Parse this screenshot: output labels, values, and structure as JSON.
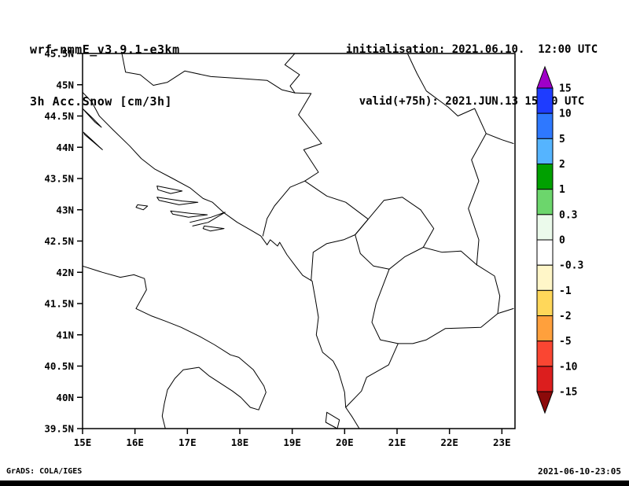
{
  "header": {
    "model": "wrf-nmmE_v3.9.1-e3km",
    "variable": "3h Acc.Snow [cm/3h]",
    "init_label": "initialisation: 2021.06.10.  12:00 UTC",
    "valid_label": "valid(+75h): 2021.JUN.13 15:00 UTC"
  },
  "footer": {
    "credit": "GrADS: COLA/IGES",
    "timestamp": "2021-06-10-23:05"
  },
  "axes": {
    "lat_labels": [
      "45.5N",
      "45N",
      "44.5N",
      "44N",
      "43.5N",
      "43N",
      "42.5N",
      "42N",
      "41.5N",
      "41N",
      "40.5N",
      "40N",
      "39.5N"
    ],
    "lat_values": [
      45.5,
      45,
      44.5,
      44,
      43.5,
      43,
      42.5,
      42,
      41.5,
      41,
      40.5,
      40,
      39.5
    ],
    "lon_labels": [
      "15E",
      "16E",
      "17E",
      "18E",
      "19E",
      "20E",
      "21E",
      "22E",
      "23E"
    ],
    "lon_values": [
      15,
      16,
      17,
      18,
      19,
      20,
      21,
      22,
      23
    ]
  },
  "colorbar": {
    "edge_labels": [
      "15",
      "10",
      "5",
      "2",
      "1",
      "0.3",
      "0",
      "-0.3",
      "-1",
      "-2",
      "-5",
      "-10",
      "-15"
    ],
    "colors_top_to_bottom": [
      "#A000C8",
      "#1E3CFF",
      "#2E78FF",
      "#55B4FF",
      "#00A000",
      "#6CD66C",
      "#EBFAEB",
      "#FFFFFF",
      "#FFF6C8",
      "#FFD75A",
      "#FFA03C",
      "#FA4632",
      "#DC1E1E",
      "#8C0A0A"
    ]
  },
  "map": {
    "lon_range": [
      15,
      23.25
    ],
    "lat_range": [
      39.5,
      45.5
    ],
    "layers": [
      {
        "name": "adriatic-coast",
        "pts": [
          [
            15.0,
            44.88
          ],
          [
            15.18,
            44.72
          ],
          [
            15.32,
            44.5
          ],
          [
            15.58,
            44.28
          ],
          [
            15.9,
            44.02
          ],
          [
            16.12,
            43.82
          ],
          [
            16.38,
            43.65
          ],
          [
            16.72,
            43.5
          ],
          [
            17.05,
            43.35
          ],
          [
            17.3,
            43.18
          ],
          [
            17.48,
            43.12
          ],
          [
            17.7,
            42.95
          ],
          [
            17.95,
            42.8
          ],
          [
            18.2,
            42.68
          ],
          [
            18.4,
            42.58
          ],
          [
            18.52,
            42.44
          ],
          [
            18.58,
            42.52
          ],
          [
            18.72,
            42.42
          ],
          [
            18.76,
            42.48
          ],
          [
            18.9,
            42.28
          ],
          [
            19.08,
            42.08
          ],
          [
            19.2,
            41.95
          ],
          [
            19.38,
            41.86
          ],
          [
            19.44,
            41.58
          ],
          [
            19.5,
            41.28
          ],
          [
            19.46,
            41.0
          ],
          [
            19.58,
            40.72
          ],
          [
            19.78,
            40.58
          ],
          [
            19.88,
            40.42
          ],
          [
            20.0,
            40.08
          ],
          [
            20.02,
            39.84
          ],
          [
            20.15,
            39.68
          ],
          [
            20.28,
            39.5
          ]
        ]
      },
      {
        "name": "italy-coast",
        "pts": [
          [
            15.0,
            42.1
          ],
          [
            15.38,
            42.0
          ],
          [
            15.72,
            41.92
          ],
          [
            15.98,
            41.96
          ],
          [
            16.18,
            41.9
          ],
          [
            16.22,
            41.72
          ],
          [
            16.02,
            41.42
          ],
          [
            16.32,
            41.3
          ],
          [
            16.58,
            41.22
          ],
          [
            16.88,
            41.12
          ],
          [
            17.22,
            40.98
          ],
          [
            17.52,
            40.84
          ],
          [
            17.82,
            40.68
          ],
          [
            17.98,
            40.64
          ],
          [
            18.26,
            40.44
          ],
          [
            18.46,
            40.18
          ],
          [
            18.5,
            40.08
          ],
          [
            18.36,
            39.8
          ],
          [
            18.2,
            39.84
          ],
          [
            18.02,
            40.0
          ],
          [
            17.86,
            40.1
          ],
          [
            17.42,
            40.34
          ],
          [
            17.22,
            40.48
          ],
          [
            16.92,
            40.44
          ],
          [
            16.76,
            40.3
          ],
          [
            16.62,
            40.12
          ],
          [
            16.56,
            39.9
          ],
          [
            16.52,
            39.7
          ],
          [
            16.58,
            39.5
          ]
        ]
      },
      {
        "name": "island-pag",
        "pts": [
          [
            15.0,
            44.62
          ],
          [
            15.2,
            44.46
          ],
          [
            15.36,
            44.32
          ],
          [
            15.24,
            44.4
          ],
          [
            15.04,
            44.58
          ],
          [
            15.0,
            44.62
          ]
        ]
      },
      {
        "name": "island-dugi-otok",
        "pts": [
          [
            15.02,
            44.24
          ],
          [
            15.2,
            44.1
          ],
          [
            15.38,
            43.96
          ],
          [
            15.24,
            44.06
          ],
          [
            15.04,
            44.2
          ],
          [
            15.02,
            44.24
          ]
        ]
      },
      {
        "name": "island-brac",
        "pts": [
          [
            16.42,
            43.38
          ],
          [
            16.72,
            43.33
          ],
          [
            16.9,
            43.3
          ],
          [
            16.68,
            43.26
          ],
          [
            16.44,
            43.32
          ],
          [
            16.42,
            43.38
          ]
        ]
      },
      {
        "name": "island-hvar",
        "pts": [
          [
            16.42,
            43.2
          ],
          [
            16.9,
            43.14
          ],
          [
            17.2,
            43.12
          ],
          [
            16.84,
            43.08
          ],
          [
            16.46,
            43.15
          ],
          [
            16.42,
            43.2
          ]
        ]
      },
      {
        "name": "island-korcula",
        "pts": [
          [
            16.68,
            42.98
          ],
          [
            17.08,
            42.94
          ],
          [
            17.38,
            42.92
          ],
          [
            17.02,
            42.88
          ],
          [
            16.72,
            42.93
          ],
          [
            16.68,
            42.98
          ]
        ]
      },
      {
        "name": "island-vis",
        "pts": [
          [
            16.05,
            43.08
          ],
          [
            16.24,
            43.06
          ],
          [
            16.16,
            43.0
          ],
          [
            16.02,
            43.04
          ],
          [
            16.05,
            43.08
          ]
        ]
      },
      {
        "name": "island-mljet",
        "pts": [
          [
            17.32,
            42.74
          ],
          [
            17.7,
            42.7
          ],
          [
            17.44,
            42.66
          ],
          [
            17.3,
            42.7
          ],
          [
            17.32,
            42.74
          ]
        ]
      },
      {
        "name": "island-corfu",
        "pts": [
          [
            19.66,
            39.76
          ],
          [
            19.9,
            39.64
          ],
          [
            19.86,
            39.5
          ],
          [
            19.64,
            39.6
          ],
          [
            19.66,
            39.76
          ]
        ]
      },
      {
        "name": "peljesac-peninsula",
        "pts": [
          [
            17.05,
            42.8
          ],
          [
            17.45,
            42.88
          ],
          [
            17.72,
            42.96
          ],
          [
            17.4,
            42.8
          ],
          [
            17.1,
            42.74
          ]
        ]
      },
      {
        "name": "border-croatia-bosnia-north",
        "pts": [
          [
            15.75,
            45.5
          ],
          [
            15.82,
            45.2
          ],
          [
            16.1,
            45.16
          ],
          [
            16.35,
            44.99
          ],
          [
            16.62,
            45.04
          ],
          [
            16.95,
            45.22
          ],
          [
            17.45,
            45.13
          ],
          [
            18.0,
            45.1
          ],
          [
            18.52,
            45.07
          ],
          [
            18.8,
            44.92
          ],
          [
            19.05,
            44.87
          ]
        ]
      },
      {
        "name": "border-croatia-serbia-danube",
        "pts": [
          [
            19.05,
            45.5
          ],
          [
            18.86,
            45.32
          ],
          [
            19.14,
            45.16
          ],
          [
            18.96,
            44.98
          ],
          [
            19.05,
            44.87
          ]
        ]
      },
      {
        "name": "border-bosnia-serbia-drina",
        "pts": [
          [
            19.05,
            44.87
          ],
          [
            19.36,
            44.86
          ],
          [
            19.12,
            44.52
          ],
          [
            19.56,
            44.06
          ],
          [
            19.22,
            43.96
          ],
          [
            19.5,
            43.6
          ],
          [
            19.24,
            43.46
          ],
          [
            18.96,
            43.36
          ],
          [
            18.66,
            43.06
          ],
          [
            18.52,
            42.86
          ],
          [
            18.44,
            42.58
          ]
        ]
      },
      {
        "name": "border-montenegro",
        "pts": [
          [
            19.24,
            43.46
          ],
          [
            19.66,
            43.22
          ],
          [
            20.02,
            43.12
          ],
          [
            20.45,
            42.85
          ],
          [
            20.2,
            42.6
          ],
          [
            19.98,
            42.52
          ],
          [
            19.66,
            42.46
          ],
          [
            19.4,
            42.32
          ],
          [
            19.36,
            41.87
          ]
        ]
      },
      {
        "name": "border-kosovo",
        "pts": [
          [
            20.2,
            42.6
          ],
          [
            20.45,
            42.85
          ],
          [
            20.75,
            43.15
          ],
          [
            21.1,
            43.2
          ],
          [
            21.45,
            43.0
          ],
          [
            21.7,
            42.7
          ],
          [
            21.5,
            42.4
          ],
          [
            21.15,
            42.25
          ],
          [
            20.85,
            42.05
          ],
          [
            20.55,
            42.1
          ],
          [
            20.3,
            42.3
          ],
          [
            20.2,
            42.6
          ]
        ]
      },
      {
        "name": "border-albania-macedonia-greece",
        "pts": [
          [
            20.85,
            42.05
          ],
          [
            20.6,
            41.5
          ],
          [
            20.52,
            41.2
          ],
          [
            20.68,
            40.92
          ],
          [
            21.02,
            40.86
          ],
          [
            20.84,
            40.52
          ],
          [
            20.42,
            40.32
          ],
          [
            20.32,
            40.1
          ],
          [
            20.02,
            39.84
          ]
        ]
      },
      {
        "name": "border-macedonia-serbia",
        "pts": [
          [
            21.5,
            42.4
          ],
          [
            21.86,
            42.32
          ],
          [
            22.22,
            42.34
          ],
          [
            22.52,
            42.12
          ]
        ]
      },
      {
        "name": "border-macedonia-bulgaria",
        "pts": [
          [
            22.52,
            42.12
          ],
          [
            22.86,
            41.94
          ],
          [
            22.96,
            41.62
          ],
          [
            22.92,
            41.34
          ]
        ]
      },
      {
        "name": "border-macedonia-greece",
        "pts": [
          [
            22.92,
            41.34
          ],
          [
            22.6,
            41.12
          ],
          [
            21.92,
            41.1
          ],
          [
            21.56,
            40.92
          ],
          [
            21.3,
            40.86
          ],
          [
            21.02,
            40.86
          ]
        ]
      },
      {
        "name": "border-serbia-bulgaria",
        "pts": [
          [
            22.7,
            44.22
          ],
          [
            22.42,
            43.8
          ],
          [
            22.56,
            43.46
          ],
          [
            22.36,
            43.02
          ],
          [
            22.56,
            42.52
          ],
          [
            22.52,
            42.12
          ]
        ]
      },
      {
        "name": "border-serbia-romania-danube",
        "pts": [
          [
            21.2,
            45.5
          ],
          [
            21.38,
            45.18
          ],
          [
            21.56,
            44.9
          ],
          [
            21.98,
            44.64
          ],
          [
            22.16,
            44.5
          ],
          [
            22.48,
            44.62
          ],
          [
            22.7,
            44.22
          ],
          [
            23.0,
            44.12
          ],
          [
            23.22,
            44.06
          ]
        ]
      },
      {
        "name": "border-greece-bulgaria",
        "pts": [
          [
            22.92,
            41.34
          ],
          [
            23.22,
            41.42
          ]
        ]
      }
    ]
  }
}
